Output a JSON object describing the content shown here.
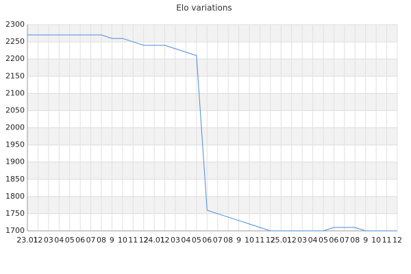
{
  "chart_data": {
    "type": "line",
    "title": "Elo variations",
    "categories": [
      "23.01",
      "12",
      "03",
      "04",
      "05",
      "06",
      "07",
      "08",
      "9",
      "10",
      "11",
      "12",
      "24.01",
      "12",
      "03",
      "04",
      "05",
      "06",
      "07",
      "08",
      "9",
      "10",
      "11",
      "12",
      "25.01",
      "12",
      "03",
      "04",
      "05",
      "06",
      "07",
      "08",
      "9",
      "10",
      "11",
      "12"
    ],
    "values": [
      2270,
      2270,
      2270,
      2270,
      2270,
      2270,
      2270,
      2270,
      2260,
      2260,
      2250,
      2240,
      2240,
      2240,
      2230,
      2220,
      2210,
      1760,
      1750,
      1740,
      1730,
      1720,
      1710,
      1700,
      1700,
      1700,
      1700,
      1700,
      1700,
      1710,
      1710,
      1710,
      1700,
      1700,
      1700,
      1700
    ],
    "color": "#4a8ad8",
    "ylim": [
      1700,
      2300
    ],
    "yticks": [
      1700,
      1750,
      1800,
      1850,
      1900,
      1950,
      2000,
      2050,
      2100,
      2150,
      2200,
      2250,
      2300
    ],
    "grid": true
  }
}
